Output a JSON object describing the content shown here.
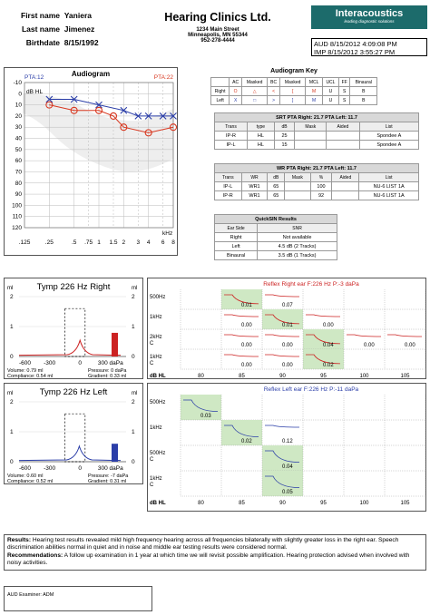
{
  "patient": {
    "first_name_label": "First name",
    "first_name": "Yaniera",
    "last_name_label": "Last name",
    "last_name": "Jimenez",
    "birthdate_label": "Birthdate",
    "birthdate": "8/15/1992"
  },
  "clinic": {
    "name": "Hearing Clinics Ltd.",
    "addr1": "1234 Main Street",
    "addr2": "Minneapolis, MN 55344",
    "phone": "952-278-4444"
  },
  "logo": {
    "brand": "Interacoustics",
    "tagline": "leading diagnostic solutions"
  },
  "dates": {
    "aud": "AUD 8/15/2012 4:09:08 PM",
    "imp": "IMP 8/15/2012 3:55:27 PM"
  },
  "audiogram": {
    "title": "Audiogram",
    "pta_left": "PTA:12",
    "pta_right": "PTA:22",
    "ylabel": "dB HL",
    "xunit": "kHz",
    "yticks": [
      "-10",
      "0",
      "10",
      "20",
      "30",
      "40",
      "50",
      "60",
      "70",
      "80",
      "90",
      "100",
      "110",
      "120"
    ],
    "xticks": [
      ".125",
      ".25",
      ".5",
      ".75",
      "1",
      "1.5",
      "2",
      "3",
      "4",
      "6",
      "8"
    ],
    "chart_data": {
      "type": "line",
      "xlabel": "kHz",
      "ylabel": "dB HL",
      "ylim": [
        -10,
        120
      ],
      "series": [
        {
          "values_x": [
            0.25,
            0.5,
            1,
            2,
            3,
            4,
            6,
            8
          ],
          "values_y": [
            5,
            5,
            10,
            15,
            20,
            20,
            20,
            20
          ],
          "color": "#2b3ea8",
          "marker": "x"
        },
        {
          "values_x": [
            0.25,
            0.5,
            1,
            1.5,
            2,
            4,
            8
          ],
          "values_y": [
            10,
            15,
            15,
            20,
            30,
            35,
            30
          ],
          "color": "#d83820",
          "marker": "o"
        }
      ]
    }
  },
  "key": {
    "title": "Audiogram Key",
    "headers": [
      "",
      "AC",
      "Masked",
      "BC",
      "Masked",
      "MCL",
      "UCL",
      "FF",
      "Binaural"
    ],
    "rows": [
      [
        "Right",
        "O",
        "△",
        "<",
        "[",
        "M",
        "U",
        "S",
        "B"
      ],
      [
        "Left",
        "X",
        "□",
        ">",
        "]",
        "M",
        "U",
        "S",
        "B"
      ]
    ]
  },
  "srt": {
    "title": "SRT  PTA Right: 21.7  PTA Left: 11.7",
    "headers": [
      "Trans",
      "type",
      "dB",
      "Mask",
      "Aided",
      "List"
    ],
    "rows": [
      [
        "IP-R",
        "HL",
        "25",
        "",
        "",
        "Spondee A"
      ],
      [
        "IP-L",
        "HL",
        "15",
        "",
        "",
        "Spondee A"
      ]
    ]
  },
  "wr": {
    "title": "WR  PTA Right: 21.7  PTA Left: 11.7",
    "headers": [
      "Trans",
      "WR",
      "dB",
      "Mask",
      "%",
      "Aided",
      "List"
    ],
    "rows": [
      [
        "IP-L",
        "WR1",
        "65",
        "",
        "100",
        "",
        "NU-6 LIST 1A"
      ],
      [
        "IP-R",
        "WR1",
        "65",
        "",
        "92",
        "",
        "NU-6 LIST 1A"
      ]
    ]
  },
  "quicksin": {
    "title": "QuickSIN Results",
    "headers": [
      "Ear Side",
      "SNR"
    ],
    "rows": [
      [
        "Right",
        "Not available"
      ],
      [
        "Left",
        "4.5 dB (2 Tracks)"
      ],
      [
        "Binaural",
        "3.5 dB (1 Tracks)"
      ]
    ]
  },
  "tymp_right": {
    "title": "Tymp 226 Hz Right",
    "yunit": "ml",
    "xticks": [
      "-600",
      "-300",
      "0",
      "300 daPa"
    ],
    "yticks": [
      "2",
      "1",
      "0"
    ],
    "volume": "Volume: 0.79 ml",
    "pressure": "Pressure: 0 daPa",
    "compliance": "Compliance: 0.54 ml",
    "gradient": "Gradient: 0.33 ml",
    "chart_data": {
      "type": "line",
      "xlabel": "daPa",
      "ylabel": "ml",
      "ylim": [
        0,
        2
      ],
      "peak_pressure": 0,
      "peak_compliance": 0.54,
      "bar_value": 0.79,
      "color": "#cc2222"
    }
  },
  "tymp_left": {
    "title": "Tymp 226 Hz Left",
    "yunit": "ml",
    "xticks": [
      "-600",
      "-300",
      "0",
      "300 daPa"
    ],
    "yticks": [
      "2",
      "1",
      "0"
    ],
    "volume": "Volume: 0.60 ml",
    "pressure": "Pressure: -7 daPa",
    "compliance": "Compliance: 0.52 ml",
    "gradient": "Gradient: 0.31 ml",
    "chart_data": {
      "type": "line",
      "xlabel": "daPa",
      "ylabel": "ml",
      "ylim": [
        0,
        2
      ],
      "peak_pressure": -7,
      "peak_compliance": 0.52,
      "bar_value": 0.6,
      "color": "#2b3ea8"
    }
  },
  "reflex_right": {
    "title": "Reflex Right ear  F:226 Hz P:-3 daPa",
    "color": "#cc2222",
    "rows": [
      "500Hz",
      "1kHz",
      "2kHz\nC",
      "1kHz\nC"
    ],
    "cols": [
      "80",
      "85",
      "90",
      "95",
      "100",
      "105"
    ],
    "xlabel": "dB HL",
    "cells": [
      [
        "",
        "0.01",
        "0.07",
        "",
        "",
        ""
      ],
      [
        "",
        "0.00",
        "0.01",
        "0.00",
        "",
        ""
      ],
      [
        "",
        "0.00",
        "0.00",
        "0.04",
        "0.00",
        "0.00"
      ],
      [
        "",
        "0.00",
        "0.00",
        "0.02",
        "",
        ""
      ]
    ],
    "green": [
      [
        1
      ],
      [
        2
      ],
      [
        3
      ],
      [
        3
      ]
    ]
  },
  "reflex_left": {
    "title": "Reflex Left ear  F:226 Hz P:-11 daPa",
    "color": "#2b3ea8",
    "rows": [
      "500Hz",
      "1kHz",
      "500Hz\nC",
      "1kHz\nC"
    ],
    "cols": [
      "80",
      "85",
      "90",
      "95",
      "100",
      "105"
    ],
    "xlabel": "dB HL",
    "cells": [
      [
        "0.03",
        "",
        "",
        "",
        "",
        ""
      ],
      [
        "",
        "0.02",
        "0.12",
        "",
        "",
        ""
      ],
      [
        "",
        "",
        "0.04",
        "",
        "",
        ""
      ],
      [
        "",
        "",
        "0.05",
        "",
        "",
        ""
      ]
    ],
    "green": [
      [
        0
      ],
      [
        1
      ],
      [
        2
      ],
      [
        2
      ]
    ]
  },
  "results": {
    "label": "Results:",
    "text": " Hearing test results revealed mild high frequency hearing across all frequencies bilaterally with slightly greater loss in the right ear. Speech discrimination abilities normal in quiet and in noise and middle ear testing results were considered normal.",
    "rec_label": "Recommendations:",
    "rec_text": " A follow up examination in 1 year at which time we will revisit possible amplification. Hearing protection advised when involved with noisy activities."
  },
  "examiner": "AUD Examiner: ADM"
}
